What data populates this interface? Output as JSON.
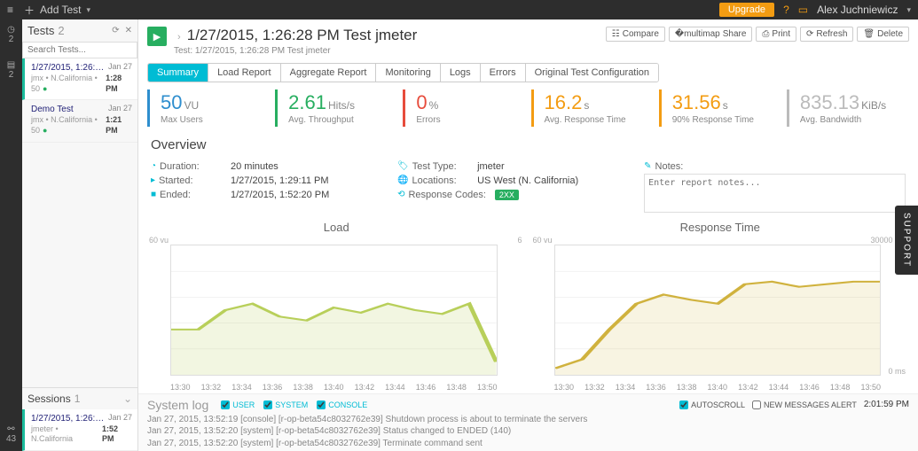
{
  "topbar": {
    "add_test": "Add Test",
    "upgrade": "Upgrade",
    "user_name": "Alex Juchniewicz"
  },
  "rail": {
    "item1_count": "2",
    "item2_count": "2",
    "bottom_count": "43"
  },
  "tests_panel": {
    "title": "Tests",
    "count": "2",
    "search_placeholder": "Search Tests...",
    "items": [
      {
        "title": "1/27/2015, 1:26:28 PM Te...",
        "date": "Jan 27",
        "meta": "jmx • N.California • 50",
        "time": "1:28 PM"
      },
      {
        "title": "Demo Test",
        "date": "Jan 27",
        "meta": "jmx • N.California • 50",
        "time": "1:21 PM"
      }
    ]
  },
  "sessions_panel": {
    "title": "Sessions",
    "count": "1",
    "items": [
      {
        "title": "1/27/2015, 1:26:28 PM Te...",
        "date": "Jan 27",
        "meta": "jmeter • N.California",
        "time": "1:52 PM"
      }
    ]
  },
  "page": {
    "title": "1/27/2015, 1:26:28 PM Test jmeter",
    "subtitle": "Test: 1/27/2015, 1:26:28 PM Test jmeter",
    "actions": {
      "compare": "Compare",
      "share": "Share",
      "print": "Print",
      "refresh": "Refresh",
      "delete": "Delete"
    },
    "tabs": [
      "Summary",
      "Load Report",
      "Aggregate Report",
      "Monitoring",
      "Logs",
      "Errors",
      "Original Test Configuration"
    ],
    "active_tab": 0
  },
  "metrics": [
    {
      "value": "50",
      "unit": "VU",
      "label": "Max Users",
      "color": "#2e8ece"
    },
    {
      "value": "2.61",
      "unit": "Hits/s",
      "label": "Avg. Throughput",
      "color": "#27ae60"
    },
    {
      "value": "0",
      "unit": "%",
      "label": "Errors",
      "color": "#e74c3c"
    },
    {
      "value": "16.2",
      "unit": "s",
      "label": "Avg. Response Time",
      "color": "#f39c12"
    },
    {
      "value": "31.56",
      "unit": "s",
      "label": "90% Response Time",
      "color": "#f39c12"
    },
    {
      "value": "835.13",
      "unit": "KiB/s",
      "label": "Avg. Bandwidth",
      "color": "#bbbbbb"
    }
  ],
  "overview": {
    "header": "Overview",
    "duration_label": "Duration:",
    "duration": "20 minutes",
    "started_label": "Started:",
    "started": "1/27/2015, 1:29:11 PM",
    "ended_label": "Ended:",
    "ended": "1/27/2015, 1:52:20 PM",
    "testtype_label": "Test Type:",
    "testtype": "jmeter",
    "locations_label": "Locations:",
    "locations": "US West (N. California)",
    "respcodes_label": "Response Codes:",
    "respcodes": "2XX",
    "notes_label": "Notes:",
    "notes_placeholder": "Enter report notes..."
  },
  "charts": {
    "xticks": [
      "13:30",
      "13:32",
      "13:34",
      "13:36",
      "13:38",
      "13:40",
      "13:42",
      "13:44",
      "13:46",
      "13:48",
      "13:50"
    ],
    "load": {
      "title": "Load",
      "yl_left": "60 vu",
      "yl_right": "6",
      "series_color": "#b8cf5a",
      "fill_color": "rgba(184,207,90,0.18)",
      "grid": "#eeeeee",
      "border": "#dddddd",
      "bg": "#ffffff",
      "points": [
        0.35,
        0.35,
        0.5,
        0.55,
        0.45,
        0.42,
        0.52,
        0.48,
        0.55,
        0.5,
        0.47,
        0.55,
        0.1
      ]
    },
    "response": {
      "title": "Response Time",
      "yl_left": "60 vu",
      "yl_right": "30000 ms",
      "yr_bottom": "0 ms",
      "series_color": "#d0b23e",
      "fill_color": "rgba(208,178,62,0.15)",
      "grid": "#eeeeee",
      "border": "#dddddd",
      "bg": "#ffffff",
      "points": [
        0.05,
        0.12,
        0.35,
        0.55,
        0.62,
        0.58,
        0.55,
        0.7,
        0.72,
        0.68,
        0.7,
        0.72,
        0.72
      ]
    }
  },
  "syslog": {
    "title": "System log",
    "filters": {
      "user": "USER",
      "system": "SYSTEM",
      "console": "CONSOLE"
    },
    "autoscroll": "AUTOSCROLL",
    "newmsg": "NEW MESSAGES ALERT",
    "clock": "2:01:59 PM",
    "lines": [
      "Jan 27, 2015, 13:52:19  [console]  [r-op-beta54c8032762e39] Shutdown process is about to terminate the servers",
      "Jan 27, 2015, 13:52:20  [system]  [r-op-beta54c8032762e39] Status changed to ENDED (140)",
      "Jan 27, 2015, 13:52:20  [system]  [r-op-beta54c8032762e39] Terminate command sent"
    ]
  },
  "support": "SUPPORT"
}
